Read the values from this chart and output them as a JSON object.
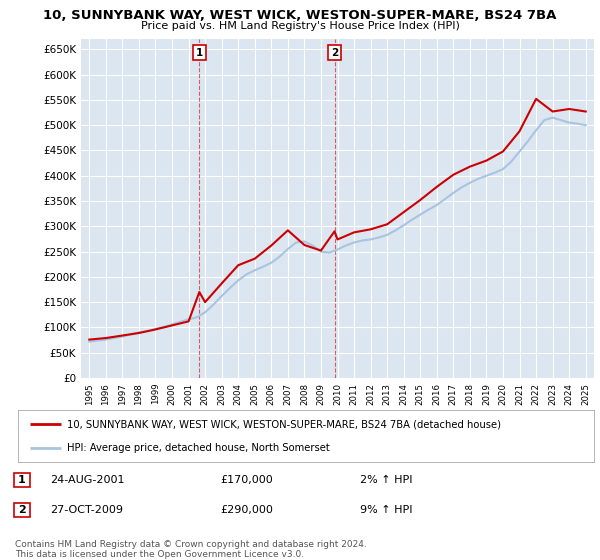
{
  "title": "10, SUNNYBANK WAY, WEST WICK, WESTON-SUPER-MARE, BS24 7BA",
  "subtitle": "Price paid vs. HM Land Registry's House Price Index (HPI)",
  "ylim": [
    0,
    670000
  ],
  "yticks": [
    0,
    50000,
    100000,
    150000,
    200000,
    250000,
    300000,
    350000,
    400000,
    450000,
    500000,
    550000,
    600000,
    650000
  ],
  "ytick_labels": [
    "£0",
    "£50K",
    "£100K",
    "£150K",
    "£200K",
    "£250K",
    "£300K",
    "£350K",
    "£400K",
    "£450K",
    "£500K",
    "£550K",
    "£600K",
    "£650K"
  ],
  "background_color": "#ffffff",
  "plot_bg_color": "#dce6f1",
  "grid_color": "#ffffff",
  "hpi_color": "#a8c4e0",
  "price_color": "#cc0000",
  "sale1_year": 2001.65,
  "sale1_price": 170000,
  "sale2_year": 2009.82,
  "sale2_price": 290000,
  "legend_line1": "10, SUNNYBANK WAY, WEST WICK, WESTON-SUPER-MARE, BS24 7BA (detached house)",
  "legend_line2": "HPI: Average price, detached house, North Somerset",
  "note1_date": "24-AUG-2001",
  "note1_price": "£170,000",
  "note1_hpi": "2% ↑ HPI",
  "note2_date": "27-OCT-2009",
  "note2_price": "£290,000",
  "note2_hpi": "9% ↑ HPI",
  "copyright": "Contains HM Land Registry data © Crown copyright and database right 2024.\nThis data is licensed under the Open Government Licence v3.0.",
  "hpi_years": [
    1995,
    1995.5,
    1996,
    1996.5,
    1997,
    1997.5,
    1998,
    1998.5,
    1999,
    1999.5,
    2000,
    2000.5,
    2001,
    2001.5,
    2002,
    2002.5,
    2003,
    2003.5,
    2004,
    2004.5,
    2005,
    2005.5,
    2006,
    2006.5,
    2007,
    2007.5,
    2008,
    2008.5,
    2009,
    2009.5,
    2010,
    2010.5,
    2011,
    2011.5,
    2012,
    2012.5,
    2013,
    2013.5,
    2014,
    2014.5,
    2015,
    2015.5,
    2016,
    2016.5,
    2017,
    2017.5,
    2018,
    2018.5,
    2019,
    2019.5,
    2020,
    2020.5,
    2021,
    2021.5,
    2022,
    2022.5,
    2023,
    2023.5,
    2024,
    2024.5,
    2025
  ],
  "hpi_values": [
    72000,
    74000,
    76000,
    79000,
    82000,
    86000,
    90000,
    93000,
    97000,
    101000,
    106000,
    111000,
    116000,
    120000,
    130000,
    145000,
    162000,
    178000,
    193000,
    205000,
    213000,
    220000,
    228000,
    240000,
    255000,
    268000,
    270000,
    262000,
    250000,
    248000,
    254000,
    262000,
    268000,
    272000,
    274000,
    278000,
    283000,
    292000,
    302000,
    313000,
    323000,
    333000,
    342000,
    354000,
    366000,
    377000,
    386000,
    394000,
    400000,
    406000,
    413000,
    428000,
    448000,
    468000,
    490000,
    510000,
    515000,
    510000,
    505000,
    503000,
    500000
  ],
  "price_years": [
    1995,
    1996,
    1997,
    1998,
    1999,
    2000,
    2001,
    2001.65,
    2002,
    2003,
    2004,
    2005,
    2006,
    2007,
    2008,
    2009,
    2009.82,
    2010,
    2011,
    2012,
    2013,
    2014,
    2015,
    2016,
    2017,
    2018,
    2019,
    2020,
    2021,
    2022,
    2023,
    2024,
    2025
  ],
  "price_values": [
    76000,
    79000,
    84000,
    89000,
    96000,
    104000,
    112000,
    170000,
    150000,
    187000,
    223000,
    236000,
    262000,
    292000,
    263000,
    252000,
    290000,
    274000,
    288000,
    294000,
    304000,
    328000,
    352000,
    378000,
    402000,
    418000,
    430000,
    448000,
    488000,
    552000,
    527000,
    532000,
    527000
  ]
}
